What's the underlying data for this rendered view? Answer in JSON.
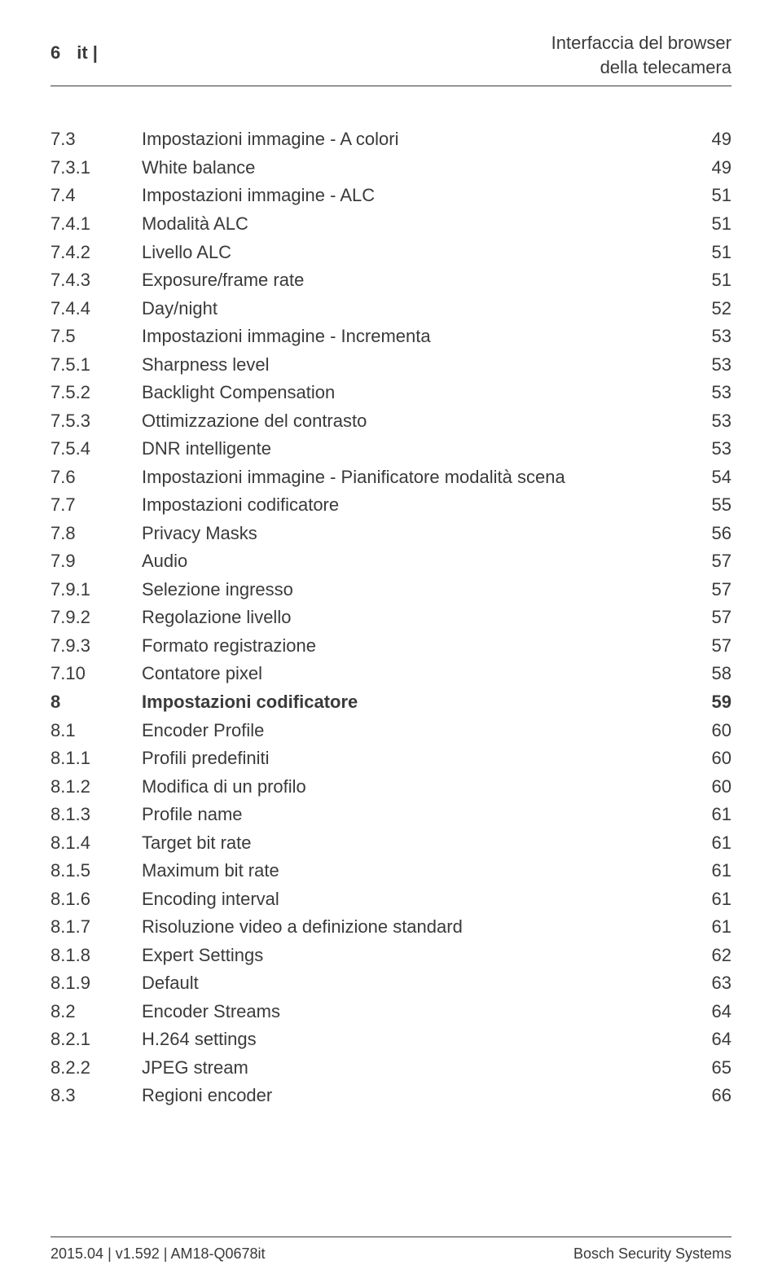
{
  "header": {
    "page_number": "6",
    "lang_label": "it |",
    "title_line1": "Interfaccia del browser",
    "title_line2": "della telecamera"
  },
  "toc": {
    "entries": [
      {
        "num": "7.3",
        "title": "Impostazioni immagine - A colori",
        "page": "49",
        "bold": false
      },
      {
        "num": "7.3.1",
        "title": "White balance",
        "page": "49",
        "bold": false
      },
      {
        "num": "7.4",
        "title": "Impostazioni immagine - ALC",
        "page": "51",
        "bold": false
      },
      {
        "num": "7.4.1",
        "title": "Modalità ALC",
        "page": "51",
        "bold": false
      },
      {
        "num": "7.4.2",
        "title": "Livello ALC",
        "page": "51",
        "bold": false
      },
      {
        "num": "7.4.3",
        "title": "Exposure/frame rate",
        "page": "51",
        "bold": false
      },
      {
        "num": "7.4.4",
        "title": "Day/night",
        "page": "52",
        "bold": false
      },
      {
        "num": "7.5",
        "title": "Impostazioni immagine - Incrementa",
        "page": "53",
        "bold": false
      },
      {
        "num": "7.5.1",
        "title": "Sharpness level",
        "page": "53",
        "bold": false
      },
      {
        "num": "7.5.2",
        "title": "Backlight Compensation",
        "page": "53",
        "bold": false
      },
      {
        "num": "7.5.3",
        "title": "Ottimizzazione del contrasto",
        "page": "53",
        "bold": false
      },
      {
        "num": "7.5.4",
        "title": "DNR intelligente",
        "page": "53",
        "bold": false
      },
      {
        "num": "7.6",
        "title": "Impostazioni immagine - Pianificatore modalità scena",
        "page": "54",
        "bold": false
      },
      {
        "num": "7.7",
        "title": "Impostazioni codificatore",
        "page": "55",
        "bold": false
      },
      {
        "num": "7.8",
        "title": "Privacy Masks",
        "page": "56",
        "bold": false
      },
      {
        "num": "7.9",
        "title": "Audio",
        "page": "57",
        "bold": false
      },
      {
        "num": "7.9.1",
        "title": "Selezione ingresso",
        "page": "57",
        "bold": false
      },
      {
        "num": "7.9.2",
        "title": "Regolazione livello",
        "page": "57",
        "bold": false
      },
      {
        "num": "7.9.3",
        "title": "Formato registrazione",
        "page": "57",
        "bold": false
      },
      {
        "num": "7.10",
        "title": "Contatore pixel",
        "page": "58",
        "bold": false
      },
      {
        "num": "8",
        "title": "Impostazioni codificatore",
        "page": "59",
        "bold": true
      },
      {
        "num": "8.1",
        "title": "Encoder Profile",
        "page": "60",
        "bold": false
      },
      {
        "num": "8.1.1",
        "title": "Profili predefiniti",
        "page": "60",
        "bold": false
      },
      {
        "num": "8.1.2",
        "title": "Modifica di un profilo",
        "page": "60",
        "bold": false
      },
      {
        "num": "8.1.3",
        "title": "Profile name",
        "page": "61",
        "bold": false
      },
      {
        "num": "8.1.4",
        "title": "Target bit rate",
        "page": "61",
        "bold": false
      },
      {
        "num": "8.1.5",
        "title": "Maximum bit rate",
        "page": "61",
        "bold": false
      },
      {
        "num": "8.1.6",
        "title": "Encoding interval",
        "page": "61",
        "bold": false
      },
      {
        "num": "8.1.7",
        "title": "Risoluzione video a definizione standard",
        "page": "61",
        "bold": false
      },
      {
        "num": "8.1.8",
        "title": "Expert Settings",
        "page": "62",
        "bold": false
      },
      {
        "num": "8.1.9",
        "title": "Default",
        "page": "63",
        "bold": false
      },
      {
        "num": "8.2",
        "title": "Encoder Streams",
        "page": "64",
        "bold": false
      },
      {
        "num": "8.2.1",
        "title": "H.264 settings",
        "page": "64",
        "bold": false
      },
      {
        "num": "8.2.2",
        "title": "JPEG stream",
        "page": "65",
        "bold": false
      },
      {
        "num": "8.3",
        "title": "Regioni encoder",
        "page": "66",
        "bold": false
      }
    ]
  },
  "footer": {
    "left": "2015.04 | v1.592 | AM18-Q0678it",
    "right": "Bosch Security Systems"
  }
}
